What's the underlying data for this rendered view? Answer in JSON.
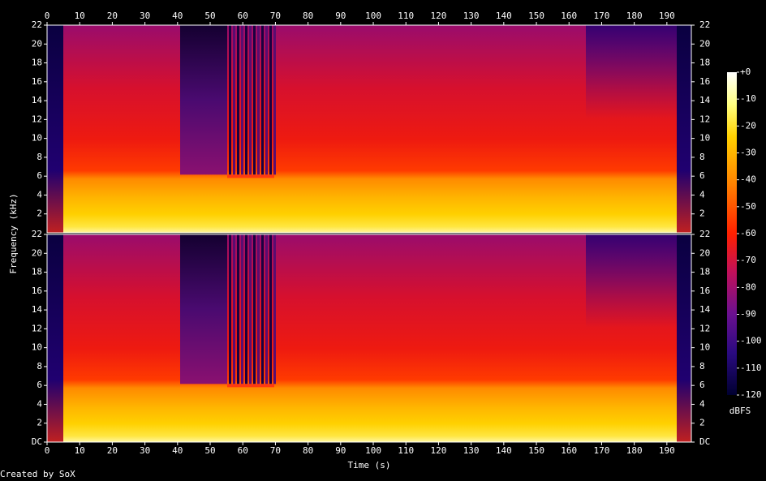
{
  "chart_data": {
    "type": "spectrogram",
    "xlabel": "Time (s)",
    "ylabel": "Frequency (kHz)",
    "xlim": [
      0,
      197.5
    ],
    "xticks": [
      0,
      10,
      20,
      30,
      40,
      50,
      60,
      70,
      80,
      90,
      100,
      110,
      120,
      130,
      140,
      150,
      160,
      170,
      180,
      190
    ],
    "panels": [
      {
        "ylim": [
          0,
          22
        ],
        "yticks": [
          2,
          4,
          6,
          8,
          10,
          12,
          14,
          16,
          18,
          20,
          22
        ]
      },
      {
        "ylim": [
          0,
          22
        ],
        "yticks": [
          {
            "value": 0,
            "label": "DC"
          },
          2,
          4,
          6,
          8,
          10,
          12,
          14,
          16,
          18,
          20,
          22
        ]
      }
    ],
    "colorbar": {
      "label": "dBFS",
      "lim": [
        -120,
        0
      ],
      "ticks": [
        {
          "value": 0,
          "label": "+0"
        },
        -10,
        -20,
        -30,
        -40,
        -50,
        -60,
        -70,
        -80,
        -90,
        -100,
        -110,
        -120
      ]
    },
    "footer": "Created by SoX"
  }
}
